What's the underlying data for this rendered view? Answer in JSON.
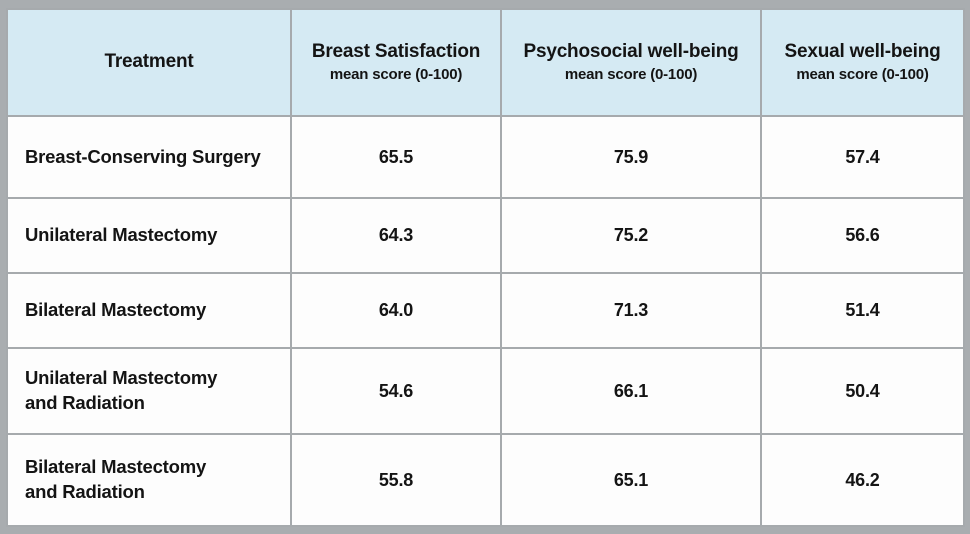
{
  "colors": {
    "frame_gray": "#a9adb0",
    "border_gray": "#a6aaad",
    "header_bg": "#d5eaf3",
    "cell_bg": "#fdfdfd",
    "text": "#141414"
  },
  "table": {
    "header": [
      {
        "label": "Treatment",
        "sub": ""
      },
      {
        "label": "Breast Satisfaction",
        "sub": "mean score (0-100)"
      },
      {
        "label": "Psychosocial well-being",
        "sub": "mean score (0-100)"
      },
      {
        "label": "Sexual well-being",
        "sub": "mean score (0-100)"
      }
    ],
    "rows": [
      {
        "treatment": "Breast-Conserving Surgery",
        "values": [
          "65.5",
          "75.9",
          "57.4"
        ]
      },
      {
        "treatment": "Unilateral Mastectomy",
        "values": [
          "64.3",
          "75.2",
          "56.6"
        ]
      },
      {
        "treatment": "Bilateral Mastectomy",
        "values": [
          "64.0",
          "71.3",
          "51.4"
        ]
      },
      {
        "treatment": "Unilateral Mastectomy\nand Radiation",
        "values": [
          "54.6",
          "66.1",
          "50.4"
        ]
      },
      {
        "treatment": "Bilateral Mastectomy\nand Radiation",
        "values": [
          "55.8",
          "65.1",
          "46.2"
        ]
      }
    ]
  },
  "chart_data": {
    "type": "table",
    "columns": [
      "Treatment",
      "Breast Satisfaction mean score (0-100)",
      "Psychosocial well-being mean score (0-100)",
      "Sexual well-being mean score (0-100)"
    ],
    "rows": [
      [
        "Breast-Conserving Surgery",
        65.5,
        75.9,
        57.4
      ],
      [
        "Unilateral Mastectomy",
        64.3,
        75.2,
        56.6
      ],
      [
        "Bilateral Mastectomy",
        64.0,
        71.3,
        51.4
      ],
      [
        "Unilateral Mastectomy and Radiation",
        54.6,
        66.1,
        50.4
      ],
      [
        "Bilateral Mastectomy and Radiation",
        55.8,
        65.1,
        46.2
      ]
    ],
    "layout": {
      "header_fill": "#d5eaf3",
      "grid": "on",
      "value_range": [
        0,
        100
      ]
    }
  }
}
